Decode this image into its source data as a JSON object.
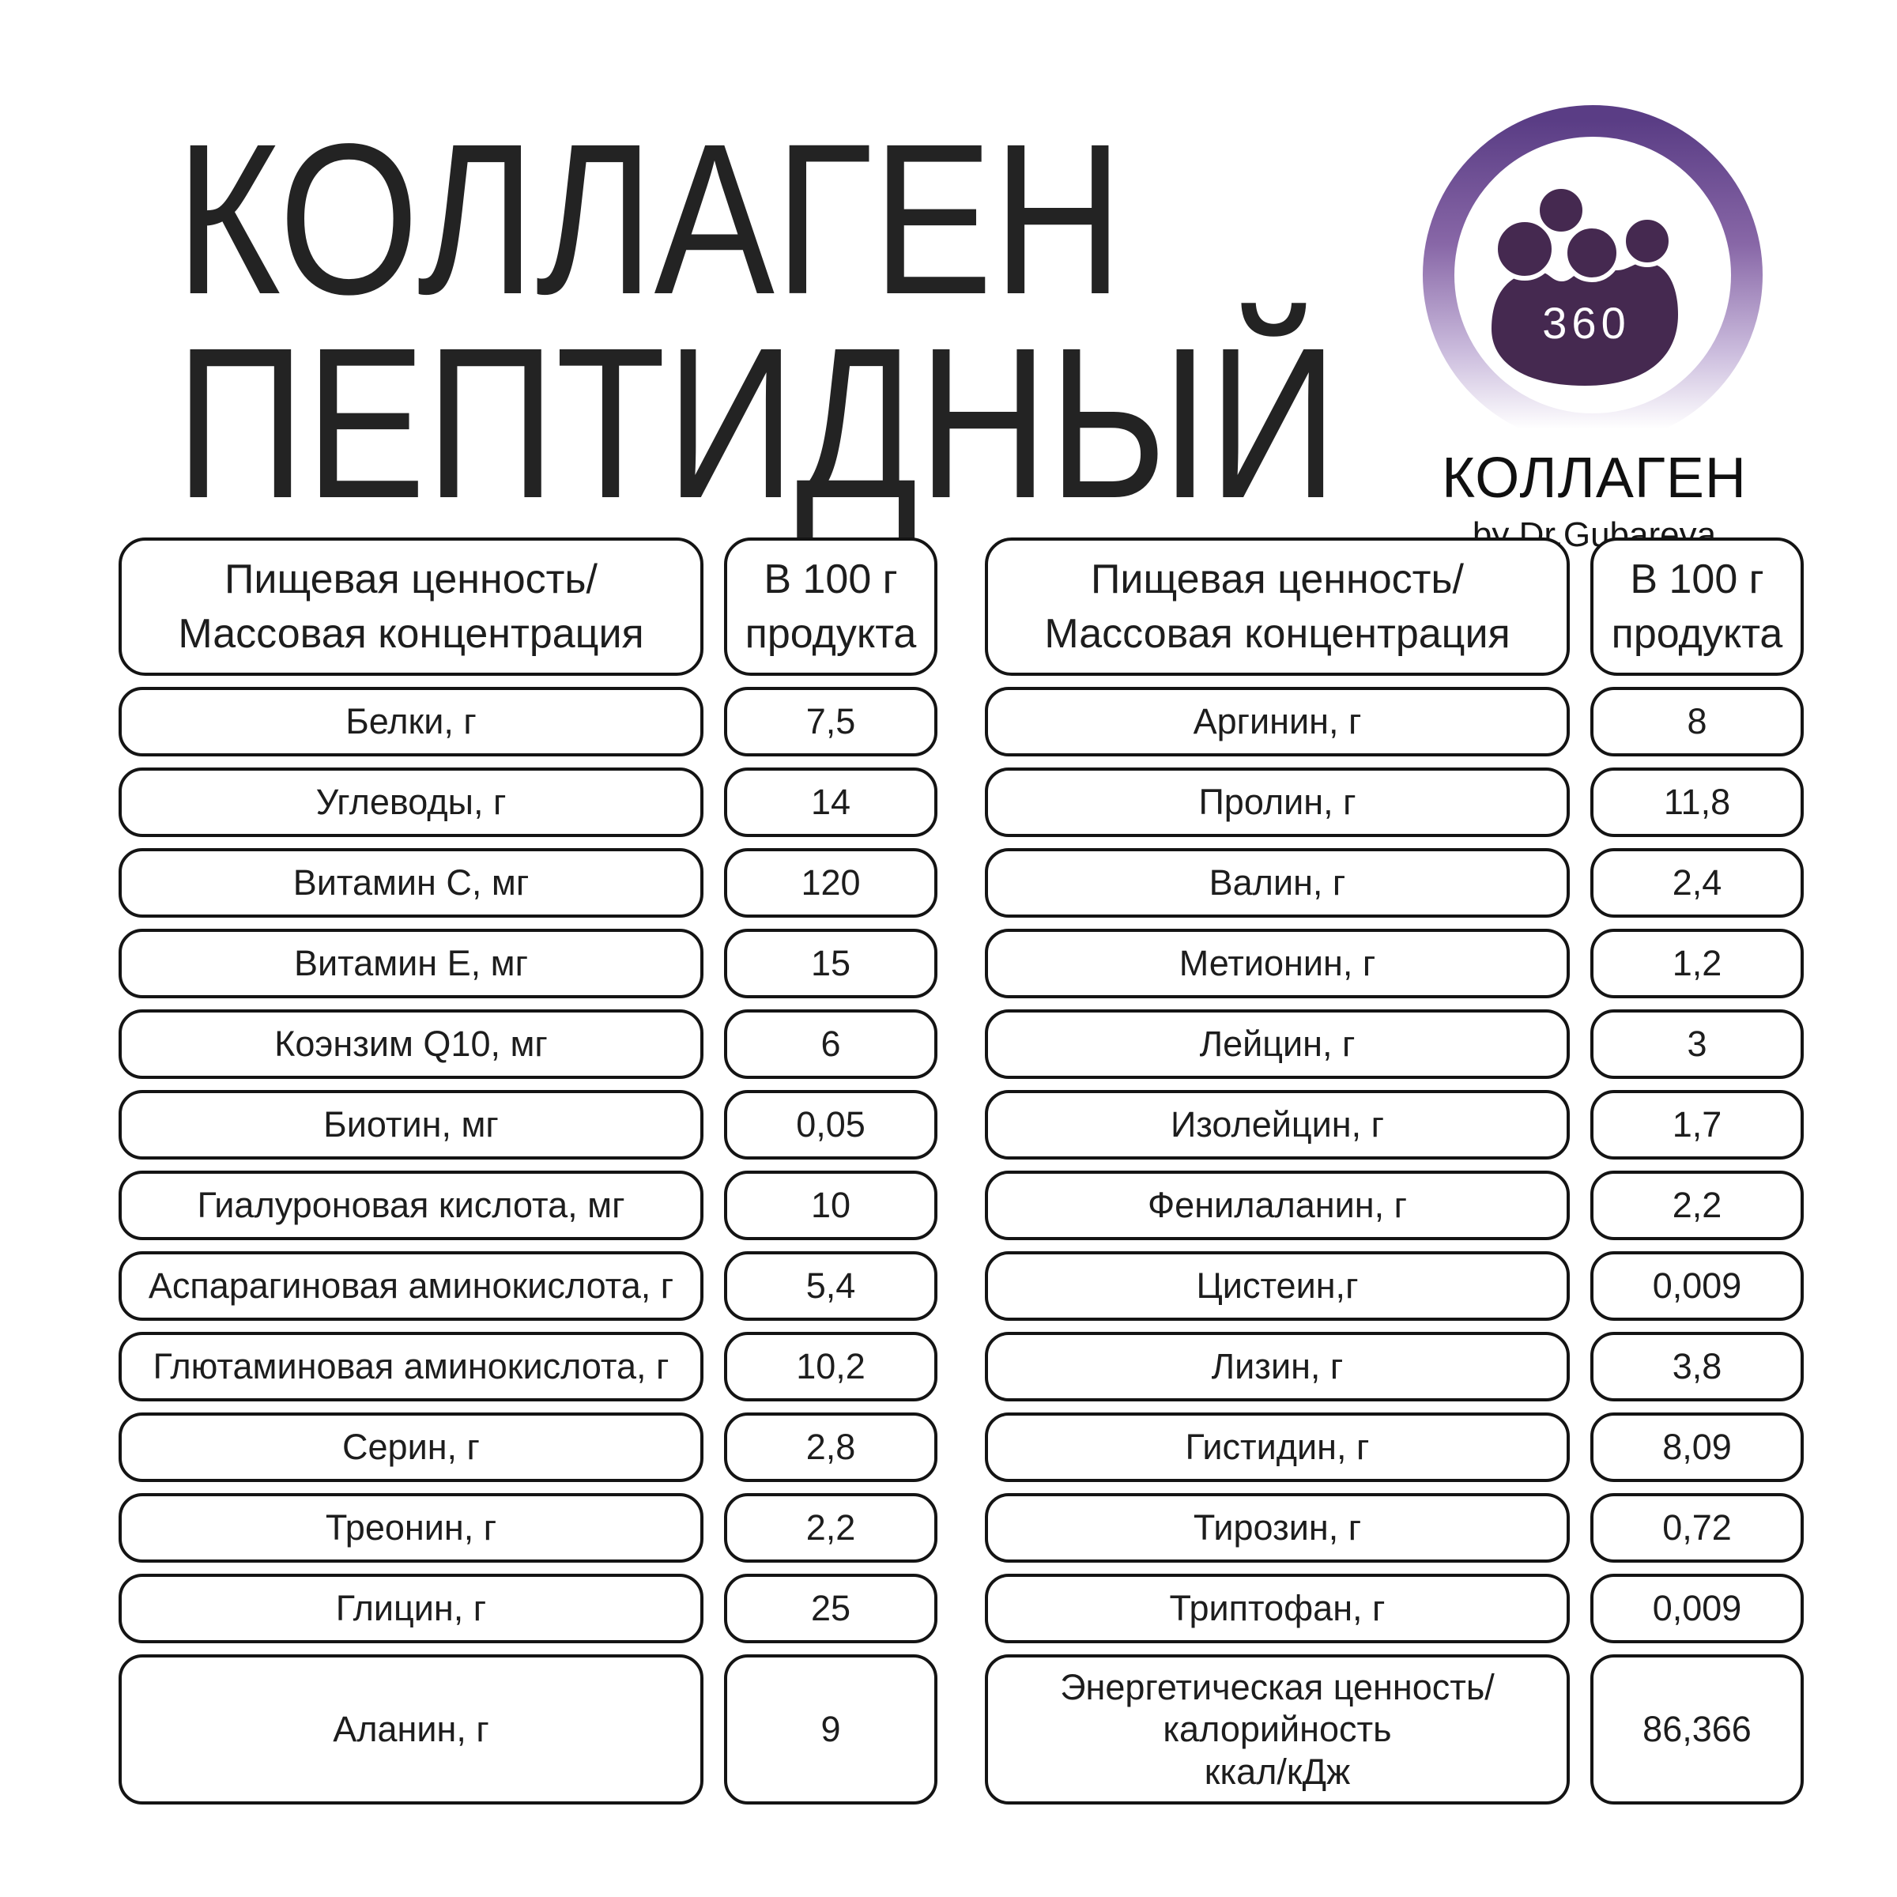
{
  "title": {
    "line1": "КОЛЛАГЕН",
    "line2": "ПЕПТИДНЫЙ"
  },
  "logo": {
    "badge_label": "360",
    "brand": "КОЛЛАГЕН",
    "byline": "by Dr.Gubareva",
    "colors": {
      "ring_top": "#5a3d85",
      "ring_mid": "#8867a7",
      "ring_low": "#cbbcdd",
      "ring_bottom": "#ffffff",
      "people": "#452950",
      "badge_text": "#ffffff"
    }
  },
  "tables": [
    {
      "header": {
        "label": "Пищевая ценность/\nМассовая концентрация",
        "value": "В 100 г\nпродукта"
      },
      "rows": [
        {
          "label": "Белки, г",
          "value": "7,5"
        },
        {
          "label": "Углеводы, г",
          "value": "14"
        },
        {
          "label": "Витамин C, мг",
          "value": "120"
        },
        {
          "label": "Витамин E, мг",
          "value": "15"
        },
        {
          "label": "Коэнзим Q10, мг",
          "value": "6"
        },
        {
          "label": "Биотин, мг",
          "value": "0,05"
        },
        {
          "label": "Гиалуроновая кислота, мг",
          "value": "10"
        },
        {
          "label": "Аспарагиновая аминокислота, г",
          "value": "5,4"
        },
        {
          "label": "Глютаминовая аминокислота, г",
          "value": "10,2"
        },
        {
          "label": "Серин, г",
          "value": "2,8"
        },
        {
          "label": "Треонин, г",
          "value": "2,2"
        },
        {
          "label": "Глицин, г",
          "value": "25"
        },
        {
          "label": "Аланин, г",
          "value": "9",
          "tall": true
        }
      ]
    },
    {
      "header": {
        "label": "Пищевая ценность/\nМассовая концентрация",
        "value": "В 100 г\nпродукта"
      },
      "rows": [
        {
          "label": "Аргинин, г",
          "value": "8"
        },
        {
          "label": "Пролин, г",
          "value": "11,8"
        },
        {
          "label": "Валин, г",
          "value": "2,4"
        },
        {
          "label": "Метионин, г",
          "value": "1,2"
        },
        {
          "label": "Лейцин, г",
          "value": "3"
        },
        {
          "label": "Изолейцин, г",
          "value": "1,7"
        },
        {
          "label": "Фенилаланин, г",
          "value": "2,2"
        },
        {
          "label": "Цистеин,г",
          "value": "0,009"
        },
        {
          "label": "Лизин, г",
          "value": "3,8"
        },
        {
          "label": "Гистидин, г",
          "value": "8,09"
        },
        {
          "label": "Тирозин, г",
          "value": "0,72"
        },
        {
          "label": "Триптофан, г",
          "value": "0,009"
        },
        {
          "label": "Энергетическая ценность/\nкалорийность\nккал/кДж",
          "value": "86,366",
          "tall": true
        }
      ]
    }
  ]
}
